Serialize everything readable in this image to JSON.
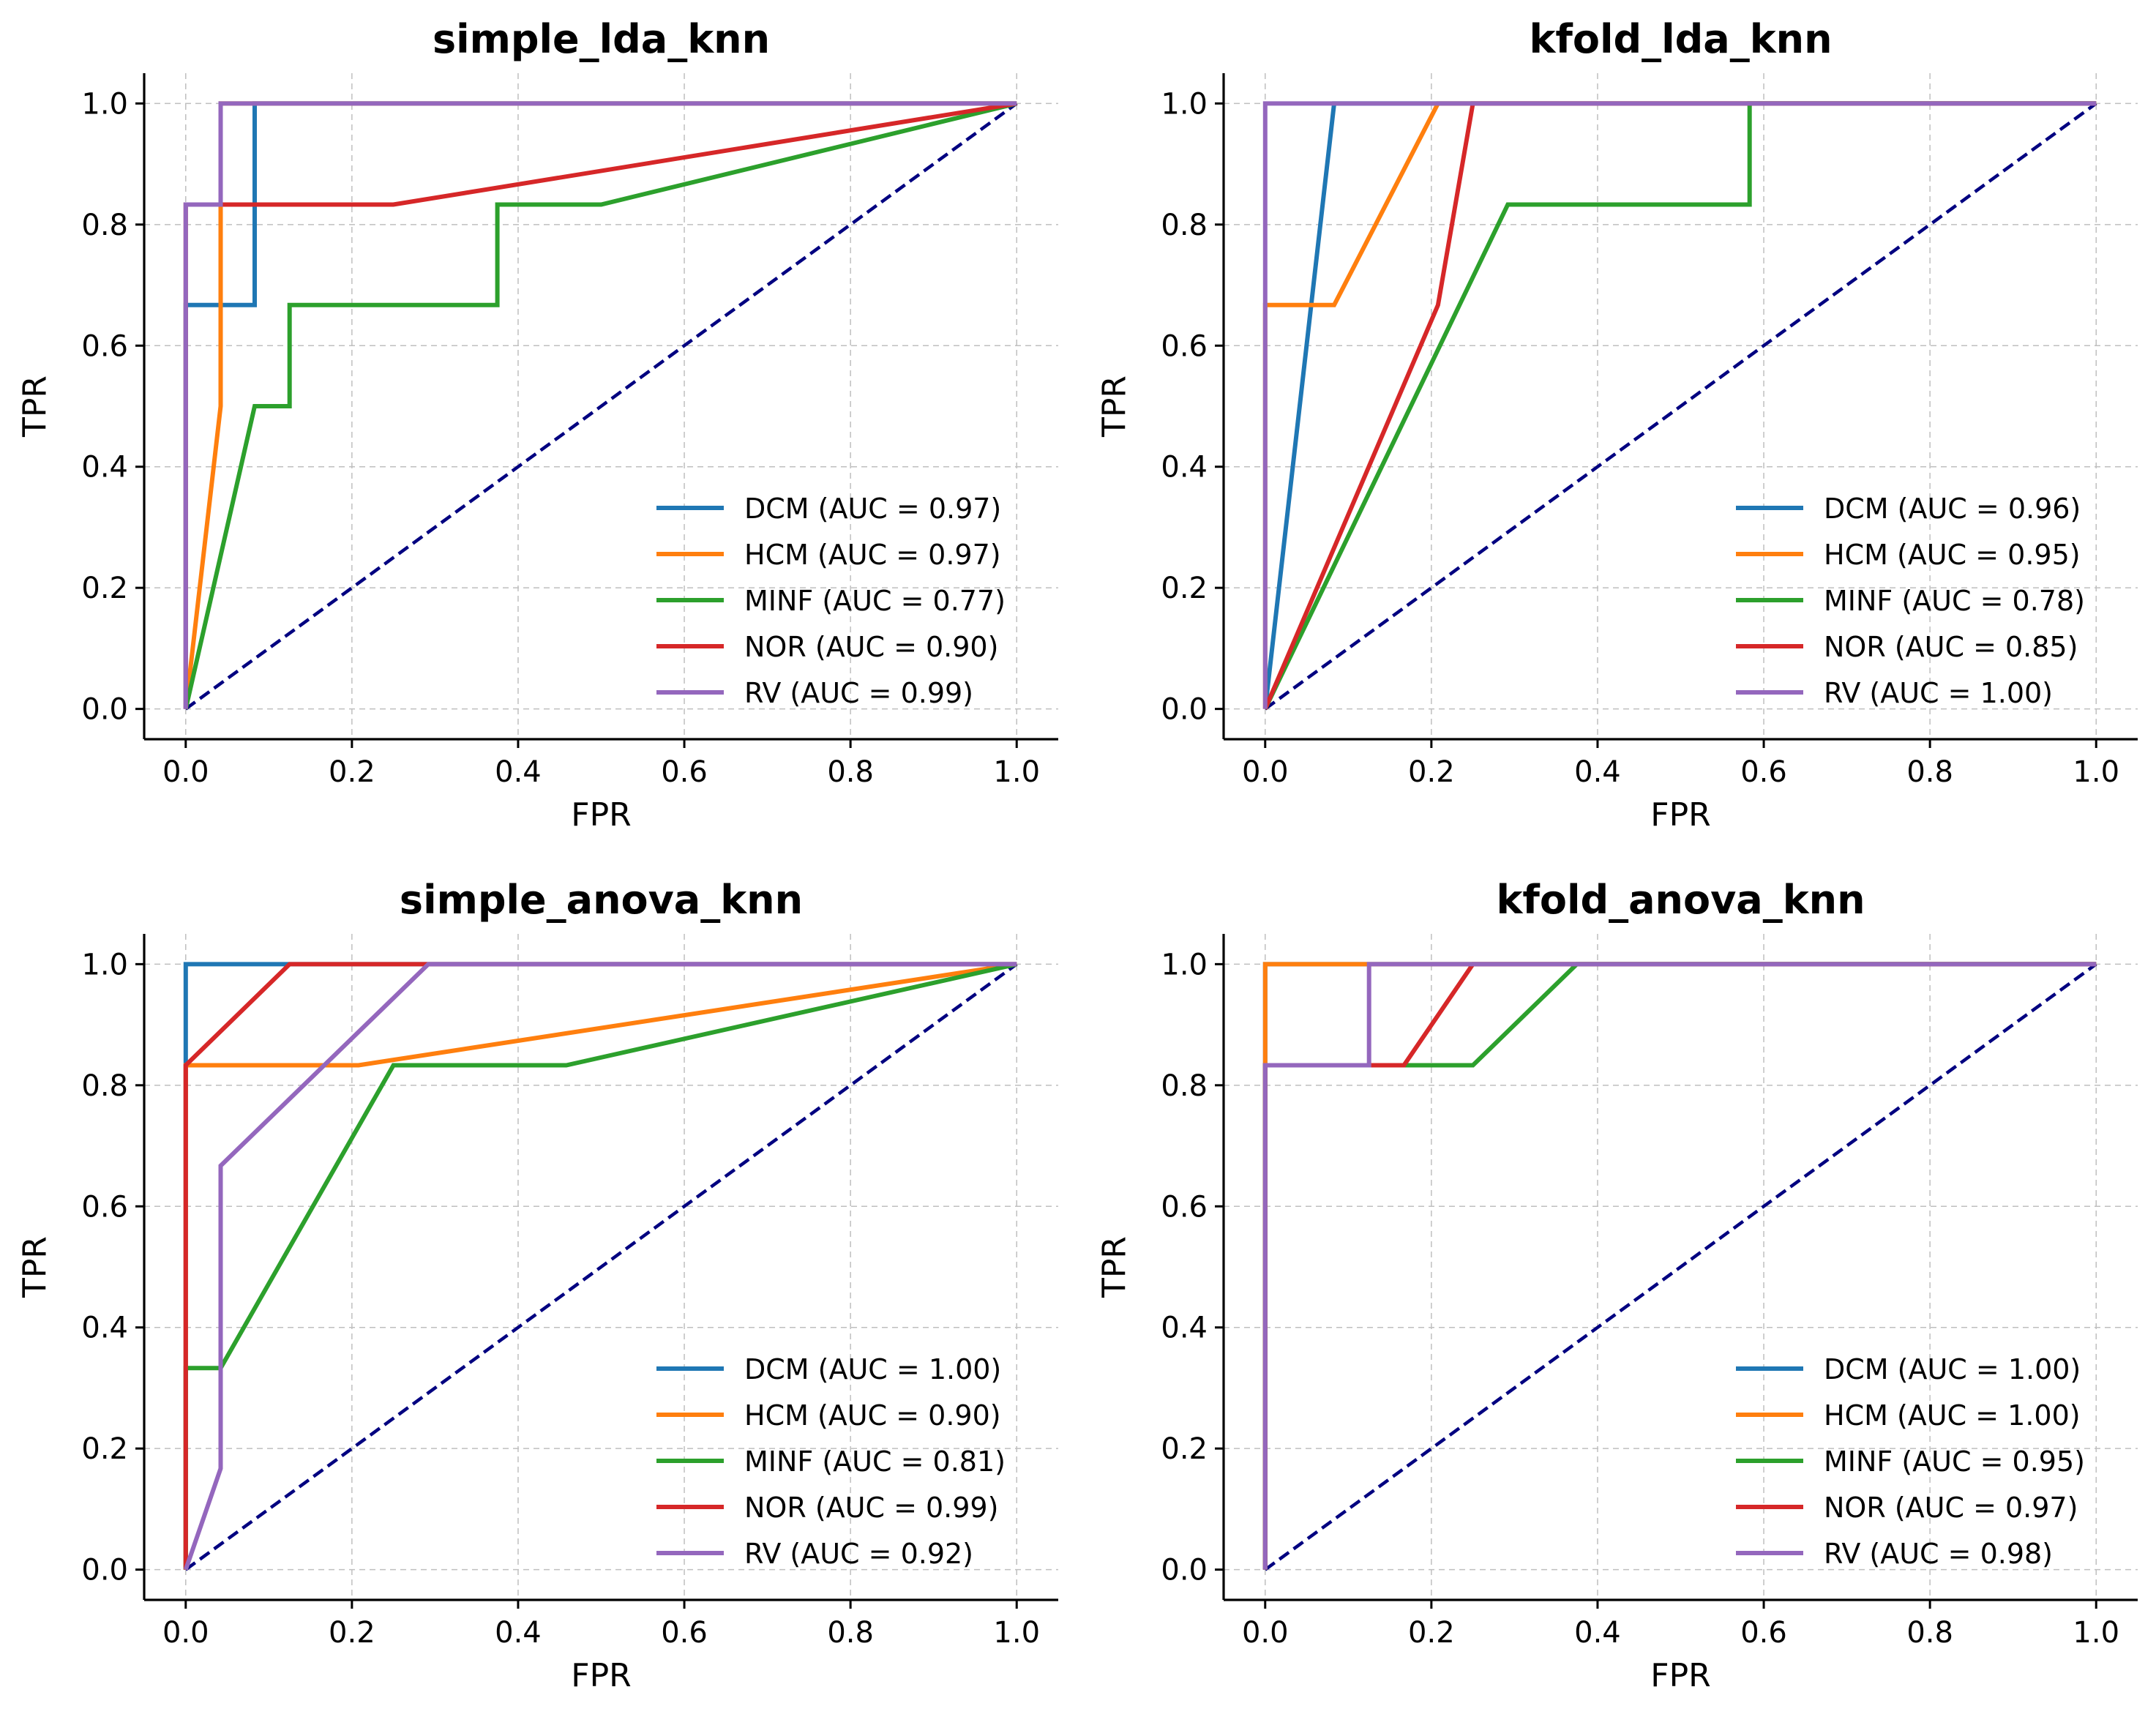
{
  "chart_data": [
    {
      "type": "line",
      "title": "simple_lda_knn",
      "xlabel": "FPR",
      "ylabel": "TPR",
      "xlim": [
        -0.05,
        1.05
      ],
      "ylim": [
        -0.05,
        1.05
      ],
      "x_ticks": [
        "0.0",
        "0.2",
        "0.4",
        "0.6",
        "0.8",
        "1.0"
      ],
      "y_ticks": [
        "0.0",
        "0.2",
        "0.4",
        "0.6",
        "0.8",
        "1.0"
      ],
      "grid": true,
      "legend_position": "lower-right",
      "series": [
        {
          "name": "DCM (AUC = 0.97)",
          "color": "#1f77b4",
          "x": [
            0,
            0,
            0.083,
            0.083,
            1
          ],
          "y": [
            0,
            0.667,
            0.667,
            1,
            1
          ]
        },
        {
          "name": "HCM (AUC = 0.97)",
          "color": "#ff7f0e",
          "x": [
            0,
            0.042,
            0.042,
            0.042,
            1
          ],
          "y": [
            0,
            0.5,
            0.833,
            1,
            1
          ]
        },
        {
          "name": "MINF (AUC = 0.77)",
          "color": "#2ca02c",
          "x": [
            0,
            0.083,
            0.125,
            0.125,
            0.375,
            0.375,
            0.5,
            1
          ],
          "y": [
            0,
            0.5,
            0.5,
            0.667,
            0.667,
            0.833,
            0.833,
            1
          ]
        },
        {
          "name": "NOR (AUC = 0.90)",
          "color": "#d62728",
          "x": [
            0,
            0,
            0.25,
            1
          ],
          "y": [
            0,
            0.833,
            0.833,
            1
          ]
        },
        {
          "name": "RV (AUC = 0.99)",
          "color": "#9467bd",
          "x": [
            0,
            0,
            0.042,
            0.042,
            1
          ],
          "y": [
            0,
            0.833,
            0.833,
            1,
            1
          ]
        }
      ]
    },
    {
      "type": "line",
      "title": "kfold_lda_knn",
      "xlabel": "FPR",
      "ylabel": "TPR",
      "xlim": [
        -0.05,
        1.05
      ],
      "ylim": [
        -0.05,
        1.05
      ],
      "x_ticks": [
        "0.0",
        "0.2",
        "0.4",
        "0.6",
        "0.8",
        "1.0"
      ],
      "y_ticks": [
        "0.0",
        "0.2",
        "0.4",
        "0.6",
        "0.8",
        "1.0"
      ],
      "grid": true,
      "legend_position": "lower-right",
      "series": [
        {
          "name": "DCM (AUC = 0.96)",
          "color": "#1f77b4",
          "x": [
            0,
            0.083,
            1
          ],
          "y": [
            0,
            1,
            1
          ]
        },
        {
          "name": "HCM (AUC = 0.95)",
          "color": "#ff7f0e",
          "x": [
            0,
            0,
            0.083,
            0.208,
            1
          ],
          "y": [
            0,
            0.667,
            0.667,
            1,
            1
          ]
        },
        {
          "name": "MINF (AUC = 0.78)",
          "color": "#2ca02c",
          "x": [
            0,
            0.292,
            0.583,
            0.583,
            1
          ],
          "y": [
            0,
            0.833,
            0.833,
            1,
            1
          ]
        },
        {
          "name": "NOR (AUC = 0.85)",
          "color": "#d62728",
          "x": [
            0,
            0.208,
            0.25,
            1
          ],
          "y": [
            0,
            0.667,
            1,
            1
          ]
        },
        {
          "name": "RV (AUC = 1.00)",
          "color": "#9467bd",
          "x": [
            0,
            0,
            1
          ],
          "y": [
            0,
            1,
            1
          ]
        }
      ]
    },
    {
      "type": "line",
      "title": "simple_anova_knn",
      "xlabel": "FPR",
      "ylabel": "TPR",
      "xlim": [
        -0.05,
        1.05
      ],
      "ylim": [
        -0.05,
        1.05
      ],
      "x_ticks": [
        "0.0",
        "0.2",
        "0.4",
        "0.6",
        "0.8",
        "1.0"
      ],
      "y_ticks": [
        "0.0",
        "0.2",
        "0.4",
        "0.6",
        "0.8",
        "1.0"
      ],
      "grid": true,
      "legend_position": "lower-right",
      "series": [
        {
          "name": "DCM (AUC = 1.00)",
          "color": "#1f77b4",
          "x": [
            0,
            0,
            1
          ],
          "y": [
            0,
            1,
            1
          ]
        },
        {
          "name": "HCM (AUC = 0.90)",
          "color": "#ff7f0e",
          "x": [
            0,
            0,
            0.208,
            1
          ],
          "y": [
            0,
            0.833,
            0.833,
            1
          ]
        },
        {
          "name": "MINF (AUC = 0.81)",
          "color": "#2ca02c",
          "x": [
            0,
            0,
            0.042,
            0.25,
            0.458,
            1
          ],
          "y": [
            0,
            0.333,
            0.333,
            0.833,
            0.833,
            1
          ]
        },
        {
          "name": "NOR (AUC = 0.99)",
          "color": "#d62728",
          "x": [
            0,
            0,
            0.125,
            1
          ],
          "y": [
            0,
            0.833,
            1,
            1
          ]
        },
        {
          "name": "RV (AUC = 0.92)",
          "color": "#9467bd",
          "x": [
            0,
            0.042,
            0.042,
            0.292,
            1
          ],
          "y": [
            0,
            0.167,
            0.667,
            1,
            1
          ]
        }
      ]
    },
    {
      "type": "line",
      "title": "kfold_anova_knn",
      "xlabel": "FPR",
      "ylabel": "TPR",
      "xlim": [
        -0.05,
        1.05
      ],
      "ylim": [
        -0.05,
        1.05
      ],
      "x_ticks": [
        "0.0",
        "0.2",
        "0.4",
        "0.6",
        "0.8",
        "1.0"
      ],
      "y_ticks": [
        "0.0",
        "0.2",
        "0.4",
        "0.6",
        "0.8",
        "1.0"
      ],
      "grid": true,
      "legend_position": "lower-right",
      "series": [
        {
          "name": "DCM (AUC = 1.00)",
          "color": "#1f77b4",
          "x": [
            0,
            0,
            1
          ],
          "y": [
            0,
            1,
            1
          ]
        },
        {
          "name": "HCM (AUC = 1.00)",
          "color": "#ff7f0e",
          "x": [
            0,
            0,
            1
          ],
          "y": [
            0,
            1,
            1
          ]
        },
        {
          "name": "MINF (AUC = 0.95)",
          "color": "#2ca02c",
          "x": [
            0,
            0,
            0.25,
            0.375,
            1
          ],
          "y": [
            0,
            0.833,
            0.833,
            1,
            1
          ]
        },
        {
          "name": "NOR (AUC = 0.97)",
          "color": "#d62728",
          "x": [
            0,
            0,
            0.167,
            0.25,
            1
          ],
          "y": [
            0,
            0.833,
            0.833,
            1,
            1
          ]
        },
        {
          "name": "RV (AUC = 0.98)",
          "color": "#9467bd",
          "x": [
            0,
            0,
            0.125,
            0.125,
            1
          ],
          "y": [
            0,
            0.833,
            0.833,
            1,
            1
          ]
        }
      ]
    }
  ],
  "diagonal_color": "#000080"
}
